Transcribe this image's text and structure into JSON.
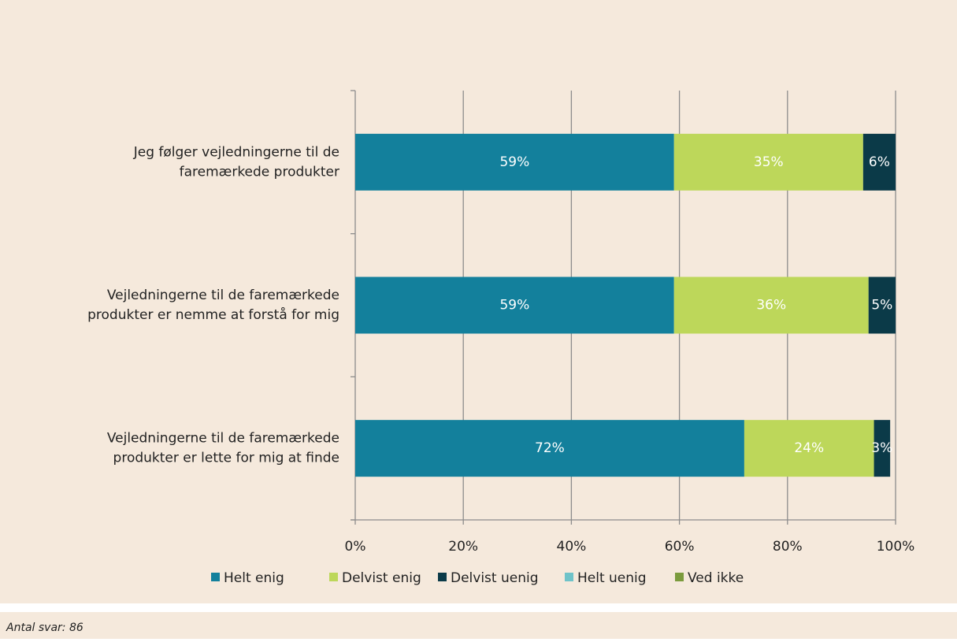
{
  "chart_data": {
    "type": "stacked-barh",
    "categories": [
      [
        "Jeg følger vejledningerne til de",
        "faremærkede produkter"
      ],
      [
        "Vejledningerne til de faremærkede",
        "produkter er nemme at forstå for mig"
      ],
      [
        "Vejledningerne til de faremærkede",
        "produkter er lette for mig at finde"
      ]
    ],
    "series": [
      {
        "name": "Helt enig",
        "color": "#13809c",
        "values": [
          59,
          59,
          72
        ],
        "value_labels": [
          "59%",
          "59%",
          "72%"
        ]
      },
      {
        "name": "Delvist enig",
        "color": "#bdd75a",
        "values": [
          35,
          36,
          24
        ],
        "value_labels": [
          "35%",
          "36%",
          "24%"
        ]
      },
      {
        "name": "Delvist uenig",
        "color": "#0b3a48",
        "values": [
          6,
          5,
          3
        ],
        "value_labels": [
          "6%",
          "5%",
          "3%"
        ]
      },
      {
        "name": "Helt uenig",
        "color": "#6fc3c9",
        "values": [
          null,
          null,
          null
        ]
      },
      {
        "name": "Ved ikke",
        "color": "#7b9b3d",
        "values": [
          null,
          null,
          null
        ]
      }
    ],
    "xlim": [
      0,
      100
    ],
    "xticks": [
      {
        "value": 0,
        "label": "0%"
      },
      {
        "value": 20,
        "label": "20%"
      },
      {
        "value": 40,
        "label": "40%"
      },
      {
        "value": 60,
        "label": "60%"
      },
      {
        "value": 80,
        "label": "80%"
      },
      {
        "value": 100,
        "label": "100%"
      }
    ],
    "grid": true,
    "legend": "bottom"
  },
  "footer": "Antal svar: 86"
}
